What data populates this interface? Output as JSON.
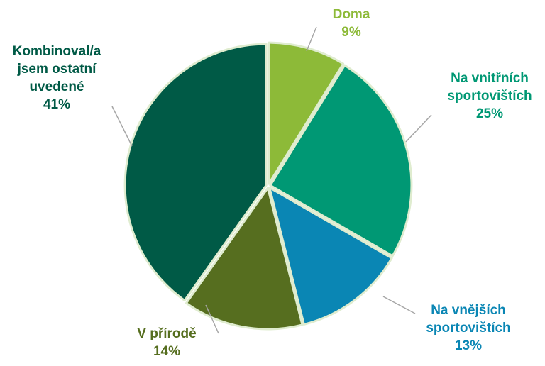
{
  "chart_data": {
    "type": "pie",
    "categories": [
      "Doma",
      "Na vnitřních sportovištích",
      "Na vnějších sportovištích",
      "V přírodě",
      "Kombinoval/a jsem ostatní uvedené"
    ],
    "values": [
      9,
      25,
      13,
      14,
      41
    ],
    "value_labels": [
      "9%",
      "25%",
      "13%",
      "14%",
      "41%"
    ],
    "colors": [
      "#8dba38",
      "#009874",
      "#0a86b4",
      "#566e1f",
      "#005a46"
    ]
  }
}
